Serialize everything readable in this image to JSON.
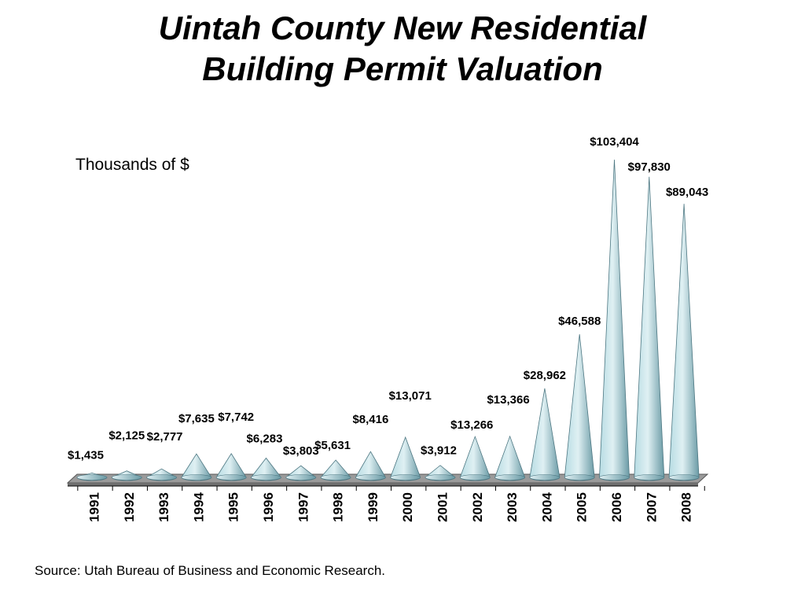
{
  "title_line1": "Uintah County New Residential",
  "title_line2": "Building Permit Valuation",
  "units_label": "Thousands of $",
  "source": "Source: Utah Bureau of Business and Economic Research.",
  "colors": {
    "cone_light": "#dff0f3",
    "cone_mid": "#b7dce3",
    "cone_dark": "#6a9aa5",
    "floor": "#9a9a9a",
    "floor_edge": "#555555"
  },
  "chart_data": {
    "type": "bar",
    "title": "Uintah County New Residential Building Permit Valuation",
    "ylabel": "Thousands of $",
    "xlabel": "",
    "categories": [
      "1991",
      "1992",
      "1993",
      "1994",
      "1995",
      "1996",
      "1997",
      "1998",
      "1999",
      "2000",
      "2001",
      "2002",
      "2003",
      "2004",
      "2005",
      "2006",
      "2007",
      "2008"
    ],
    "values": [
      1435,
      2125,
      2777,
      7635,
      7742,
      6283,
      3803,
      5631,
      8416,
      13071,
      3912,
      13266,
      13366,
      28962,
      46588,
      103404,
      97830,
      89043
    ],
    "value_labels": [
      "$1,435",
      "$2,125",
      "$2,777",
      "$7,635",
      "$7,742",
      "$6,283",
      "$3,803",
      "$5,631",
      "$8,416",
      "$13,071",
      "$3,912",
      "$13,266",
      "$13,366",
      "$28,962",
      "$46,588",
      "$103,404",
      "$97,830",
      "$89,043"
    ],
    "ylim": [
      0,
      103404
    ],
    "grid": false
  }
}
